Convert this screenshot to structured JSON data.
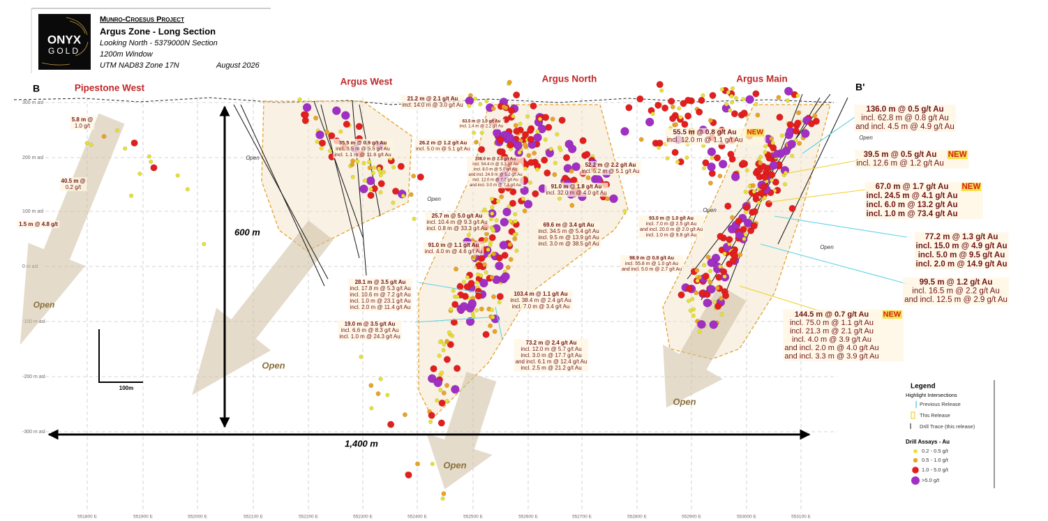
{
  "header": {
    "project": "Munro-Croesus Project",
    "title": "Argus Zone - Long Section",
    "lines": [
      "Looking North - 5379000N Section",
      "1200m Window",
      "UTM NAD83 Zone 17N"
    ],
    "date": "August 2026",
    "logo": [
      "ONYX",
      "GOLD"
    ]
  },
  "section_ends": [
    "B",
    "B'"
  ],
  "zones": [
    "Pipestone West",
    "Argus West",
    "Argus North",
    "Argus Main"
  ],
  "elevations": [
    "300 m asl",
    "200 m asl",
    "100 m asl",
    "0 m asl",
    "-100 m asl",
    "-200 m asl",
    "-300 m asl"
  ],
  "eastings": [
    "551800 E",
    "551900 E",
    "552000 E",
    "552100 E",
    "552200 E",
    "552300 E",
    "552400 E",
    "552500 E",
    "552600 E",
    "552700 E",
    "552800 E",
    "552900 E",
    "553000 E",
    "553100 E"
  ],
  "scale": {
    "vertical": "600 m",
    "horizontal": "1,400 m",
    "bar": "100m"
  },
  "open_labels": [
    "Open",
    "Open",
    "Open",
    "Open",
    "Open",
    "Open",
    "Open",
    "Open",
    "Open"
  ],
  "intercepts": [
    {
      "lines": [
        "5.8 m @",
        "1.0 g/t"
      ]
    },
    {
      "lines": [
        "40.5 m @",
        "0.2 g/t"
      ]
    },
    {
      "lines": [
        "1.5 m @ 4.8 g/t"
      ]
    },
    {
      "lines": [
        "21.2 m @ 2.1 g/t Au",
        "incl. 14.0 m @ 3.0 g/t Au"
      ]
    },
    {
      "lines": [
        "35.5 m @ 0.9 g/t Au",
        "incl. 3.5 m @ 5.5 g/t Au",
        "incl. 1.1 m @ 11.6 g/t Au"
      ]
    },
    {
      "lines": [
        "26.2 m @ 1.2 g/t Au",
        "incl. 5.0 m @ 5.1 g/t Au"
      ]
    },
    {
      "lines": [
        "63.5 m @ 1.0 g/t Au",
        "incl. 1.4 m @ 2.2 g/t Au"
      ]
    },
    {
      "lines": [
        "208.0 m @ 2.3 g/t Au",
        "incl. 54.4 m @ 3.3 g/t Au",
        "incl. 8.0 m @ 5.0 g/t Au",
        "and incl. 24.9 m @ 5.2 g/t Au",
        "incl. 12.0 m @ 7.2 g/t Au",
        "and incl. 3.0 m @ 7.3 g/t Au"
      ]
    },
    {
      "lines": [
        "52.2 m @ 2.2 g/t Au",
        "incl. 5.2 m @ 5.1 g/t Au"
      ]
    },
    {
      "lines": [
        "91.0 m @ 1.8 g/t Au",
        "incl. 32.0 m @ 4.0 g/t Au"
      ]
    },
    {
      "lines": [
        "25.7 m @ 5.0 g/t Au",
        "incl. 10.4 m @ 9.3 g/t Au",
        "incl. 0.8 m @ 33.3 g/t Au"
      ]
    },
    {
      "lines": [
        "69.6 m @ 3.4 g/t Au",
        "incl. 34.5 m @ 5.4 g/t Au",
        "incl. 9.5 m @ 13.9 g/t Au",
        "incl. 3.0 m @ 38.5 g/t Au"
      ]
    },
    {
      "lines": [
        "91.0 m @ 1.1 g/t Au",
        "incl. 4.0 m @ 4.6 g/t Au"
      ]
    },
    {
      "lines": [
        "93.0 m @ 1.0 g/t Au",
        "incl. 7.0 m @ 2.5 g/t Au",
        "and incl. 20.0 m @ 2.0 g/t Au",
        "incl. 1.0 m @ 9.8 g/t Au"
      ]
    },
    {
      "lines": [
        "98.9 m @ 0.8 g/t Au",
        "incl. 55.8 m @ 1.0 g/t Au",
        "and incl. 5.0 m @ 2.7 g/t Au"
      ]
    },
    {
      "lines": [
        "28.1 m @ 3.5 g/t Au",
        "incl. 17.8 m @ 5.3 g/t Au",
        "incl. 10.6 m @ 7.2 g/t Au",
        "incl. 1.0 m @ 23.1 g/t Au",
        "incl. 2.0 m @ 11.4 g/t Au"
      ]
    },
    {
      "lines": [
        "103.4 m @ 1.1 g/t Au",
        "incl. 38.4 m @ 2.4 g/t Au",
        "incl. 7.0 m @ 3.4 g/t Au"
      ]
    },
    {
      "lines": [
        "19.0 m @ 3.5 g/t Au",
        "incl. 6.6 m @ 8.3 g/t Au",
        "incl. 1.0 m @ 24.3 g/t Au"
      ]
    },
    {
      "lines": [
        "73.2 m @ 2.4 g/t Au",
        "incl. 12.0 m @ 5.7 g/t Au",
        "incl. 3.0 m @ 17.7 g/t Au",
        "and incl. 6.1 m @ 12.4 g/t Au",
        "incl. 2.5 m @ 21.2 g/t Au"
      ]
    },
    {
      "lines": [
        "55.5 m @ 0.8 g/t Au",
        "incl. 12.0 m @ 1.1 g/t Au"
      ],
      "new": "NEW"
    },
    {
      "lines": [
        "136.0 m @ 0.5 g/t Au",
        "incl. 62.8 m @ 0.8 g/t Au",
        "and incl. 4.5 m @ 4.9 g/t Au"
      ]
    },
    {
      "lines": [
        "39.5 m @ 0.5 g/t Au",
        "incl. 12.6 m @ 1.2 g/t Au"
      ],
      "new": "NEW"
    },
    {
      "lines": [
        "67.0 m @ 1.7 g/t Au",
        "incl. 24.5 m @ 4.1 g/t Au",
        "incl. 6.0 m @ 13.2 g/t Au",
        "incl. 1.0 m @ 73.4 g/t Au"
      ],
      "new": "NEW"
    },
    {
      "lines": [
        "77.2 m @ 1.3 g/t Au",
        "incl. 15.0 m @ 4.9 g/t Au",
        "incl. 5.0 m @ 9.5 g/t Au",
        "incl. 2.0 m @ 14.9 g/t Au"
      ]
    },
    {
      "lines": [
        "99.5 m @ 1.2 g/t Au",
        "incl. 16.5 m @ 2.2 g/t Au",
        "and incl. 12.5 m @ 2.9 g/t Au"
      ]
    },
    {
      "lines": [
        "144.5 m @ 0.7 g/t Au",
        "incl. 75.0 m @ 1.1 g/t Au",
        "incl. 21.3 m @ 2.1 g/t Au",
        "incl. 4.0 m @ 3.9 g/t Au",
        "and incl. 2.0 m @ 4.0 g/t Au",
        "and incl. 3.3 m @ 3.9 g/t Au"
      ],
      "new": "NEW"
    }
  ],
  "legend": {
    "title": "Legend",
    "highlight_title": "Highlight Intersections",
    "highlight_items": [
      "Previous Release",
      "This Release",
      "Drill Trace (this release)"
    ],
    "assay_title": "Drill Assays - Au",
    "assay_items": [
      "0.2 - 0.5 g/t",
      "0.5 - 1.0 g/t",
      "1.0 - 5.0 g/t",
      ">5.0 g/t"
    ]
  }
}
